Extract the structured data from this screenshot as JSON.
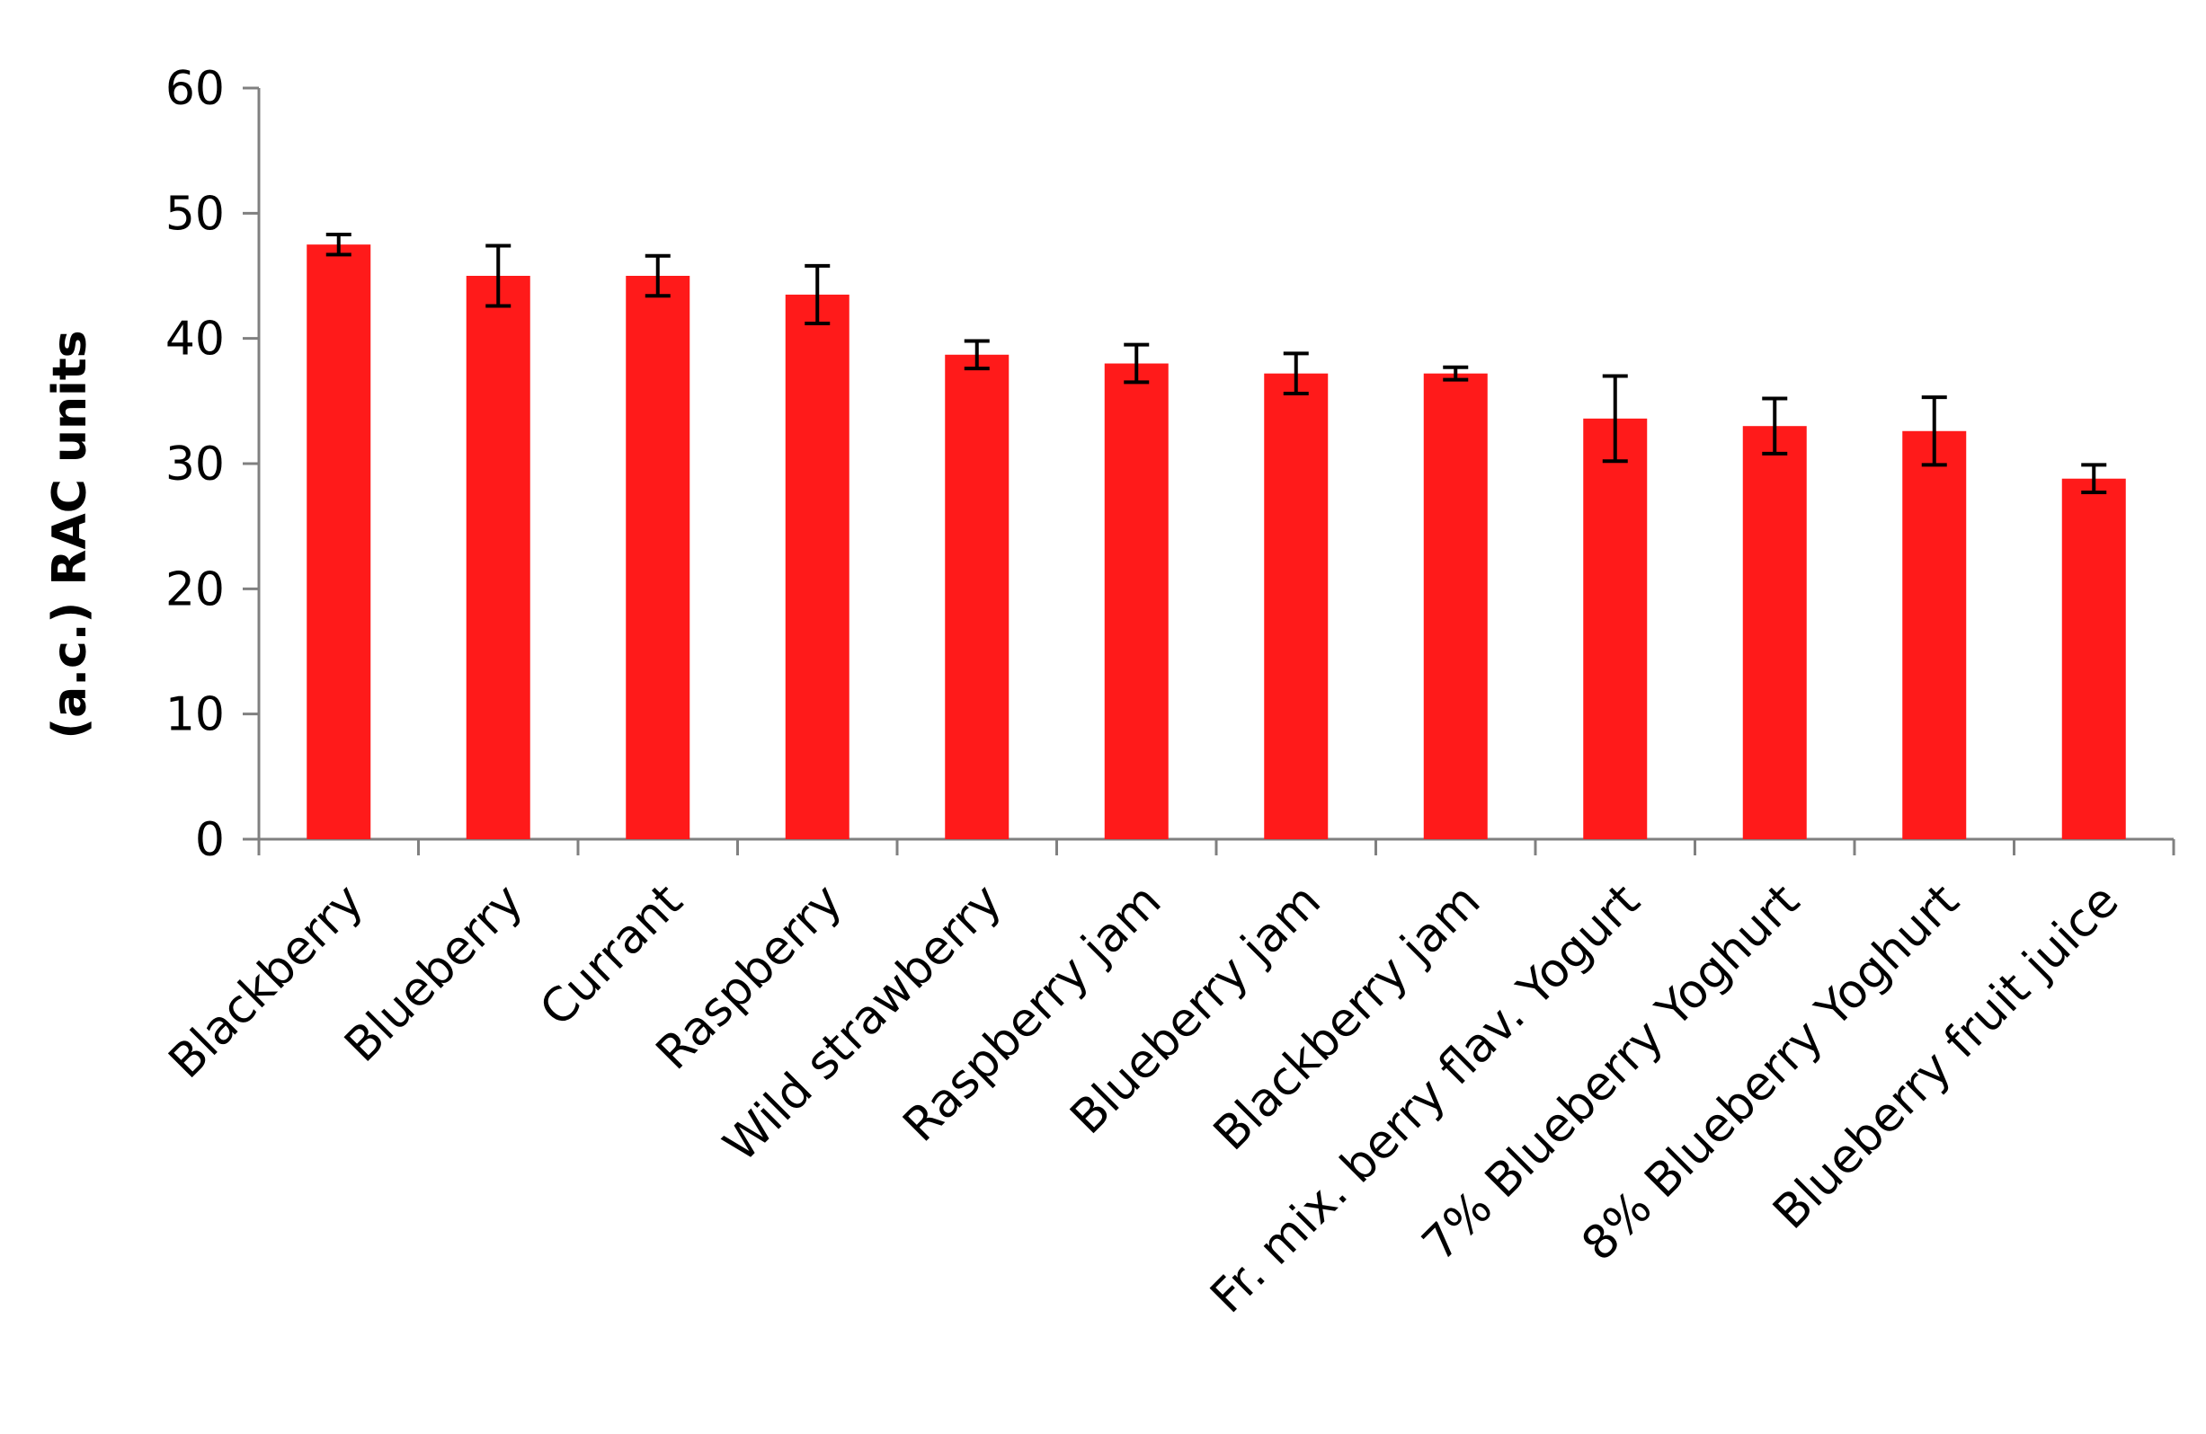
{
  "chart_data": {
    "type": "bar",
    "title": "",
    "xlabel": "",
    "ylabel": "(a.c.) RAC units",
    "ylim": [
      0,
      60
    ],
    "yticks": [
      0,
      10,
      20,
      30,
      40,
      50,
      60
    ],
    "grid": false,
    "legend": "none",
    "bar_color": "#ff1a1a",
    "categories": [
      "Blackberry",
      "Blueberry",
      "Currant",
      "Raspberry",
      "Wild strawberry",
      "Raspberry jam",
      "Blueberry jam",
      "Blackberry jam",
      "Fr. mix. berry flav. Yogurt",
      "7% Blueberry Yoghurt",
      "8% Blueberry Yoghurt",
      "Blueberry fruit juice"
    ],
    "values": [
      47.5,
      45.0,
      45.0,
      43.5,
      38.7,
      38.0,
      37.2,
      37.2,
      33.6,
      33.0,
      32.6,
      28.8
    ],
    "errors": [
      0.8,
      2.4,
      1.6,
      2.3,
      1.1,
      1.5,
      1.6,
      0.5,
      3.4,
      2.2,
      2.7,
      1.1
    ]
  }
}
